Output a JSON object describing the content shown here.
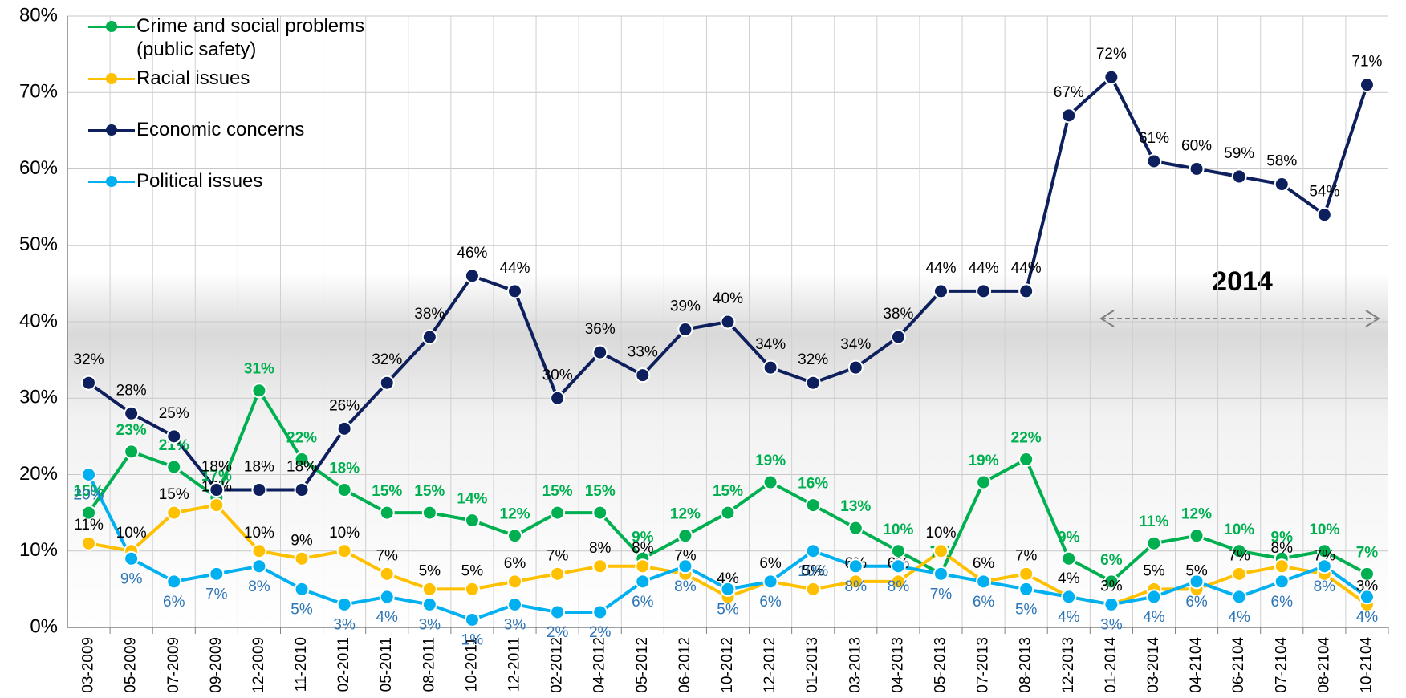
{
  "chart_data": {
    "type": "line",
    "annotation": "2014",
    "categories": [
      "03-2009",
      "05-2009",
      "07-2009",
      "09-2009",
      "12-2009",
      "11-2010",
      "02-2011",
      "05-2011",
      "08-2011",
      "10-2011",
      "12-2011",
      "02-2012",
      "04-2012",
      "05-2012",
      "06-2012",
      "10-2012",
      "12-2012",
      "01-2013",
      "03-2013",
      "04-2013",
      "05-2013",
      "07-2013",
      "08-2013",
      "12-2013",
      "01-2014",
      "03-2014",
      "04-2104",
      "06-2104",
      "07-2104",
      "08-2104",
      "10-2104"
    ],
    "series": [
      {
        "name": "Crime and social problems (public safety)",
        "color": "#00b050",
        "values": [
          15,
          23,
          21,
          17,
          31,
          22,
          18,
          15,
          15,
          14,
          12,
          15,
          15,
          9,
          12,
          15,
          19,
          16,
          13,
          10,
          7,
          19,
          22,
          9,
          6,
          11,
          12,
          10,
          9,
          10,
          7
        ],
        "value_labels": [
          "15%",
          "23%",
          "21%",
          "17%",
          "31%",
          "22%",
          "18%",
          "15%",
          "15%",
          "14%",
          "12%",
          "15%",
          "15%",
          "9%",
          "12%",
          "15%",
          "19%",
          "16%",
          "13%",
          "10%",
          "7%",
          "19%",
          "22%",
          "9%",
          "6%",
          "11%",
          "12%",
          "10%",
          "9%",
          "10%",
          "7%"
        ]
      },
      {
        "name": "Racial issues",
        "color": "#ffc000",
        "values": [
          11,
          10,
          15,
          16,
          10,
          9,
          10,
          7,
          5,
          5,
          6,
          7,
          8,
          8,
          7,
          4,
          6,
          5,
          6,
          6,
          10,
          6,
          7,
          4,
          3,
          5,
          5,
          7,
          8,
          7,
          3
        ],
        "value_labels": [
          "11%",
          "10%",
          "15%",
          "16%",
          "10%",
          "9%",
          "10%",
          "7%",
          "5%",
          "5%",
          "6%",
          "7%",
          "8%",
          "8%",
          "7%",
          "4%",
          "6%",
          "5%",
          "6%",
          "6%",
          "10%",
          "6%",
          "7%",
          "4%",
          "3%",
          "5%",
          "5%",
          "7%",
          "8%",
          "7%",
          "3%"
        ]
      },
      {
        "name": "Economic concerns",
        "color": "#0d1f5c",
        "values": [
          32,
          28,
          25,
          18,
          18,
          18,
          26,
          32,
          38,
          46,
          44,
          30,
          36,
          33,
          39,
          40,
          34,
          32,
          34,
          38,
          44,
          44,
          44,
          67,
          72,
          61,
          60,
          59,
          58,
          54,
          71
        ],
        "value_labels": [
          "32%",
          "28%",
          "25%",
          "18%",
          "18%",
          "18%",
          "26%",
          "32%",
          "38%",
          "46%",
          "44%",
          "30%",
          "36%",
          "33%",
          "39%",
          "40%",
          "34%",
          "32%",
          "34%",
          "38%",
          "44%",
          "44%",
          "44%",
          "67%",
          "72%",
          "61%",
          "60%",
          "59%",
          "58%",
          "54%",
          "71%"
        ]
      },
      {
        "name": "Political issues",
        "color": "#00b0f0",
        "values": [
          20,
          9,
          6,
          7,
          8,
          5,
          3,
          4,
          3,
          1,
          3,
          2,
          2,
          6,
          8,
          5,
          6,
          10,
          8,
          8,
          7,
          6,
          5,
          4,
          3,
          4,
          6,
          4,
          6,
          8,
          4
        ],
        "value_labels": [
          "20%",
          "9%",
          "6%",
          "7%",
          "8%",
          "5%",
          "3%",
          "4%",
          "3%",
          "1%",
          "3%",
          "2%",
          "2%",
          "6%",
          "8%",
          "5%",
          "6%",
          "10%",
          "8%",
          "8%",
          "7%",
          "6%",
          "5%",
          "4%",
          "3%",
          "4%",
          "6%",
          "4%",
          "6%",
          "8%",
          "4%"
        ]
      }
    ],
    "ylim": [
      0,
      80
    ],
    "yticks": [
      {
        "value": 0,
        "label": "0%"
      },
      {
        "value": 10,
        "label": "10%"
      },
      {
        "value": 20,
        "label": "20%"
      },
      {
        "value": 30,
        "label": "30%"
      },
      {
        "value": 40,
        "label": "40%"
      },
      {
        "value": 50,
        "label": "50%"
      },
      {
        "value": 60,
        "label": "60%"
      },
      {
        "value": 70,
        "label": "70%"
      },
      {
        "value": 80,
        "label": "80%"
      }
    ],
    "grid": true
  }
}
